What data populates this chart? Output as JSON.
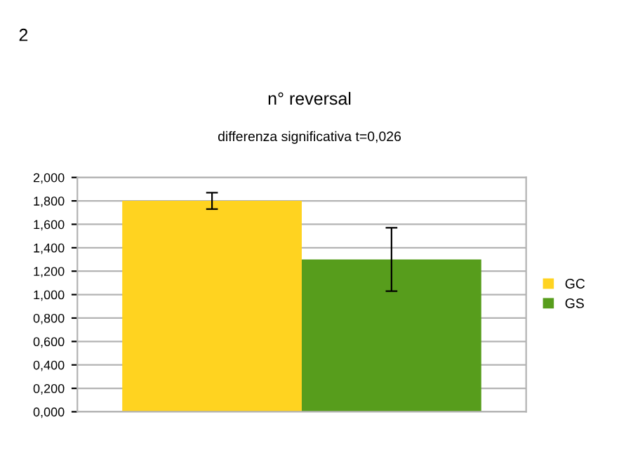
{
  "chart_data": {
    "type": "bar",
    "title": "n° reversal",
    "subtitle": "differenza significativa t=0,026",
    "annotations": [
      "2"
    ],
    "categories": [
      null
    ],
    "series": [
      {
        "name": "GC",
        "color": "#ffd320",
        "values": [
          1.8
        ],
        "errors": [
          0.07
        ]
      },
      {
        "name": "GS",
        "color": "#579d1c",
        "values": [
          1.3
        ],
        "errors": [
          0.27
        ]
      }
    ],
    "ylim": [
      0,
      2
    ],
    "yticks": [
      {
        "value": 0,
        "label": "0,000"
      },
      {
        "value": 0.2,
        "label": "0,200"
      },
      {
        "value": 0.4,
        "label": "0,400"
      },
      {
        "value": 0.6,
        "label": "0,600"
      },
      {
        "value": 0.8,
        "label": "0,800"
      },
      {
        "value": 1.0,
        "label": "1,000"
      },
      {
        "value": 1.2,
        "label": "1,200"
      },
      {
        "value": 1.4,
        "label": "1,400"
      },
      {
        "value": 1.6,
        "label": "1,600"
      },
      {
        "value": 1.8,
        "label": "1,800"
      },
      {
        "value": 2.0,
        "label": "2,000"
      }
    ],
    "grid": "y",
    "legend": "right"
  }
}
